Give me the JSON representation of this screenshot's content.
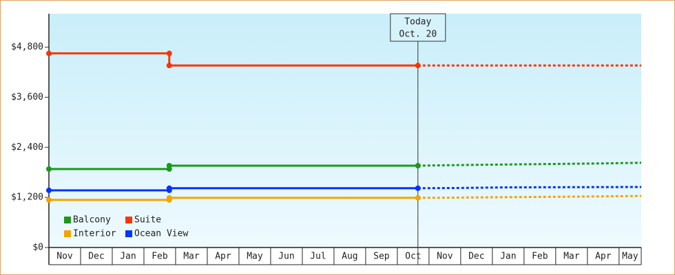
{
  "chart_data": {
    "type": "step-line",
    "categories": [
      "Nov",
      "Dec",
      "Jan",
      "Feb",
      "Mar",
      "Apr",
      "May",
      "Jun",
      "Jul",
      "Aug",
      "Sep",
      "Oct",
      "Nov",
      "Dec",
      "Jan",
      "Feb",
      "Mar",
      "Apr",
      "May"
    ],
    "xlim": [
      0,
      18.7
    ],
    "ylim": [
      0,
      5600
    ],
    "yticks": [
      {
        "value": 0,
        "label": "$0"
      },
      {
        "value": 1200,
        "label": "$1,200"
      },
      {
        "value": 2400,
        "label": "$2,400"
      },
      {
        "value": 3600,
        "label": "$3,600"
      },
      {
        "value": 4800,
        "label": "$4,800"
      }
    ],
    "annotation": {
      "lines": [
        "Today",
        "Oct. 20"
      ],
      "x": 11.65
    },
    "series": [
      {
        "name": "Balcony",
        "color": "#1a9a1a",
        "x": [
          0,
          3.8,
          3.8,
          11.65
        ],
        "values": [
          1880,
          1880,
          1960,
          1960
        ],
        "forecast_x": [
          11.65,
          12.5,
          14,
          15.8,
          17.5,
          18.7
        ],
        "forecast_values": [
          1960,
          1970,
          1985,
          2000,
          2015,
          2030
        ]
      },
      {
        "name": "Suite",
        "color": "#ff3300",
        "x": [
          0,
          3.8,
          3.8,
          11.65
        ],
        "values": [
          4650,
          4650,
          4360,
          4360
        ],
        "forecast_x": [
          11.65,
          18.7
        ],
        "forecast_values": [
          4360,
          4360
        ]
      },
      {
        "name": "Interior",
        "color": "#f5a300",
        "x": [
          0,
          3.8,
          3.8,
          11.65
        ],
        "values": [
          1140,
          1140,
          1190,
          1190
        ],
        "forecast_x": [
          11.65,
          12.8,
          14.4,
          16,
          17.6,
          18.7
        ],
        "forecast_values": [
          1190,
          1195,
          1205,
          1215,
          1225,
          1235
        ]
      },
      {
        "name": "Ocean View",
        "color": "#0033ff",
        "x": [
          0,
          3.8,
          3.8,
          11.65
        ],
        "values": [
          1370,
          1370,
          1420,
          1420
        ],
        "forecast_x": [
          11.65,
          12.8,
          14.4,
          18.7
        ],
        "forecast_values": [
          1420,
          1425,
          1440,
          1450
        ]
      }
    ]
  }
}
